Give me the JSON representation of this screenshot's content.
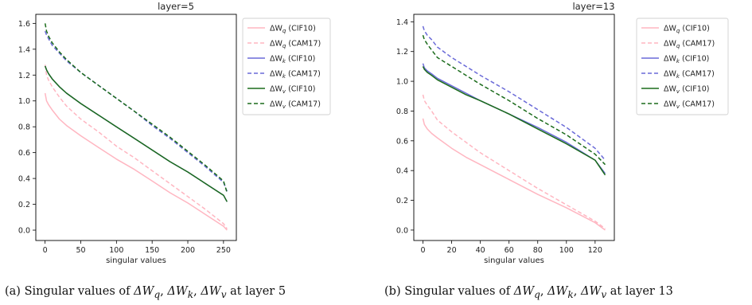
{
  "chart_data": [
    {
      "type": "line",
      "title": "layer=5",
      "xlabel": "singular values",
      "ylabel": "",
      "xlim": [
        -13,
        268
      ],
      "ylim": [
        -0.08,
        1.67
      ],
      "xticks": [
        0,
        50,
        100,
        150,
        200,
        250
      ],
      "yticks": [
        0.0,
        0.2,
        0.4,
        0.6,
        0.8,
        1.0,
        1.2,
        1.4,
        1.6
      ],
      "grid": false,
      "legend_position": "top-right",
      "series": [
        {
          "name": "ΔW_q (CIF10)",
          "legend_main": "ΔW",
          "legend_sub": "q",
          "legend_tag": "(CIF10)",
          "color": "#ffb6c1",
          "dash": "solid",
          "x": [
            0,
            2,
            5,
            10,
            20,
            30,
            50,
            75,
            100,
            125,
            150,
            175,
            200,
            225,
            250,
            255
          ],
          "y": [
            1.06,
            1.0,
            0.97,
            0.93,
            0.86,
            0.81,
            0.73,
            0.64,
            0.55,
            0.47,
            0.38,
            0.29,
            0.21,
            0.12,
            0.03,
            0.0
          ]
        },
        {
          "name": "ΔW_q (CAM17)",
          "legend_main": "ΔW",
          "legend_sub": "q",
          "legend_tag": "(CAM17)",
          "color": "#ffb6c1",
          "dash": "dashed",
          "x": [
            0,
            2,
            5,
            10,
            20,
            30,
            50,
            75,
            100,
            125,
            150,
            175,
            200,
            225,
            250,
            255
          ],
          "y": [
            1.28,
            1.2,
            1.16,
            1.11,
            1.03,
            0.96,
            0.86,
            0.76,
            0.65,
            0.56,
            0.46,
            0.36,
            0.26,
            0.16,
            0.05,
            0.01
          ]
        },
        {
          "name": "ΔW_k (CIF10)",
          "legend_main": "ΔW",
          "legend_sub": "k",
          "legend_tag": "(CIF10)",
          "color": "#6a6ad8",
          "dash": "solid",
          "x": [
            0,
            2,
            5,
            10,
            20,
            30,
            50,
            75,
            100,
            125,
            150,
            175,
            200,
            225,
            250,
            255
          ],
          "y": [
            1.27,
            1.24,
            1.21,
            1.17,
            1.11,
            1.06,
            0.98,
            0.89,
            0.8,
            0.71,
            0.62,
            0.53,
            0.45,
            0.36,
            0.27,
            0.22
          ]
        },
        {
          "name": "ΔW_k (CAM17)",
          "legend_main": "ΔW",
          "legend_sub": "k",
          "legend_tag": "(CAM17)",
          "color": "#6a6ad8",
          "dash": "dashed",
          "x": [
            0,
            2,
            5,
            10,
            20,
            30,
            50,
            75,
            100,
            125,
            150,
            175,
            200,
            225,
            250,
            255
          ],
          "y": [
            1.54,
            1.51,
            1.48,
            1.43,
            1.37,
            1.31,
            1.22,
            1.12,
            1.02,
            0.92,
            0.81,
            0.71,
            0.6,
            0.49,
            0.37,
            0.3
          ]
        },
        {
          "name": "ΔW_v (CIF10)",
          "legend_main": "ΔW",
          "legend_sub": "v",
          "legend_tag": "(CIF10)",
          "color": "#1b6b1b",
          "dash": "solid",
          "x": [
            0,
            2,
            5,
            10,
            20,
            30,
            50,
            75,
            100,
            125,
            150,
            175,
            200,
            225,
            250,
            255
          ],
          "y": [
            1.27,
            1.24,
            1.21,
            1.17,
            1.11,
            1.06,
            0.98,
            0.89,
            0.8,
            0.71,
            0.62,
            0.53,
            0.45,
            0.36,
            0.27,
            0.22
          ]
        },
        {
          "name": "ΔW_v (CAM17)",
          "legend_main": "ΔW",
          "legend_sub": "v",
          "legend_tag": "(CAM17)",
          "color": "#1b6b1b",
          "dash": "dashed",
          "x": [
            0,
            2,
            5,
            10,
            20,
            30,
            50,
            75,
            100,
            125,
            150,
            175,
            200,
            225,
            250,
            255
          ],
          "y": [
            1.6,
            1.54,
            1.5,
            1.45,
            1.38,
            1.32,
            1.22,
            1.12,
            1.02,
            0.92,
            0.82,
            0.72,
            0.61,
            0.5,
            0.38,
            0.29
          ]
        }
      ]
    },
    {
      "type": "line",
      "title": "layer=13",
      "xlabel": "singular values",
      "ylabel": "",
      "xlim": [
        -6.4,
        133.4
      ],
      "ylim": [
        -0.07,
        1.45
      ],
      "xticks": [
        0,
        20,
        40,
        60,
        80,
        100,
        120
      ],
      "yticks": [
        0.0,
        0.2,
        0.4,
        0.6,
        0.8,
        1.0,
        1.2,
        1.4
      ],
      "grid": false,
      "legend_position": "top-right",
      "series": [
        {
          "name": "ΔW_q (CIF10)",
          "legend_main": "ΔW",
          "legend_sub": "q",
          "legend_tag": "(CIF10)",
          "color": "#ffb6c1",
          "dash": "solid",
          "x": [
            0,
            1,
            3,
            6,
            10,
            20,
            30,
            40,
            60,
            80,
            100,
            120,
            127
          ],
          "y": [
            0.75,
            0.71,
            0.68,
            0.65,
            0.62,
            0.55,
            0.49,
            0.44,
            0.34,
            0.24,
            0.15,
            0.05,
            0.0
          ]
        },
        {
          "name": "ΔW_q (CAM17)",
          "legend_main": "ΔW",
          "legend_sub": "q",
          "legend_tag": "(CAM17)",
          "color": "#ffb6c1",
          "dash": "dashed",
          "x": [
            0,
            1,
            3,
            6,
            10,
            20,
            30,
            40,
            60,
            80,
            100,
            120,
            127
          ],
          "y": [
            0.91,
            0.87,
            0.84,
            0.8,
            0.74,
            0.66,
            0.59,
            0.52,
            0.4,
            0.28,
            0.17,
            0.06,
            0.01
          ]
        },
        {
          "name": "ΔW_k (CIF10)",
          "legend_main": "ΔW",
          "legend_sub": "k",
          "legend_tag": "(CIF10)",
          "color": "#6a6ad8",
          "dash": "solid",
          "x": [
            0,
            1,
            3,
            6,
            10,
            20,
            30,
            40,
            60,
            80,
            100,
            120,
            127
          ],
          "y": [
            1.12,
            1.09,
            1.07,
            1.05,
            1.02,
            0.97,
            0.92,
            0.87,
            0.78,
            0.69,
            0.59,
            0.47,
            0.38
          ]
        },
        {
          "name": "ΔW_k (CAM17)",
          "legend_main": "ΔW",
          "legend_sub": "k",
          "legend_tag": "(CAM17)",
          "color": "#6a6ad8",
          "dash": "dashed",
          "x": [
            0,
            1,
            3,
            6,
            10,
            20,
            30,
            40,
            60,
            80,
            100,
            120,
            127
          ],
          "y": [
            1.37,
            1.34,
            1.31,
            1.28,
            1.23,
            1.16,
            1.1,
            1.04,
            0.93,
            0.81,
            0.69,
            0.55,
            0.47
          ]
        },
        {
          "name": "ΔW_v (CIF10)",
          "legend_main": "ΔW",
          "legend_sub": "v",
          "legend_tag": "(CIF10)",
          "color": "#1b6b1b",
          "dash": "solid",
          "x": [
            0,
            1,
            3,
            6,
            10,
            20,
            30,
            40,
            60,
            80,
            100,
            120,
            127
          ],
          "y": [
            1.1,
            1.08,
            1.06,
            1.04,
            1.01,
            0.96,
            0.91,
            0.87,
            0.78,
            0.68,
            0.58,
            0.47,
            0.37
          ]
        },
        {
          "name": "ΔW_v (CAM17)",
          "legend_main": "ΔW",
          "legend_sub": "v",
          "legend_tag": "(CAM17)",
          "color": "#1b6b1b",
          "dash": "dashed",
          "x": [
            0,
            1,
            3,
            6,
            10,
            20,
            30,
            40,
            60,
            80,
            100,
            120,
            127
          ],
          "y": [
            1.31,
            1.28,
            1.25,
            1.21,
            1.16,
            1.1,
            1.04,
            0.98,
            0.87,
            0.75,
            0.64,
            0.51,
            0.44
          ]
        }
      ]
    }
  ],
  "captions": [
    {
      "prefix": "(a) Singular values of",
      "terms": [
        {
          "main": "ΔW",
          "sub": "q"
        },
        {
          "main": "ΔW",
          "sub": "k"
        },
        {
          "main": "ΔW",
          "sub": "v"
        }
      ],
      "suffix": "at layer 5"
    },
    {
      "prefix": "(b) Singular values of",
      "terms": [
        {
          "main": "ΔW",
          "sub": "q"
        },
        {
          "main": "ΔW",
          "sub": "k"
        },
        {
          "main": "ΔW",
          "sub": "v"
        }
      ],
      "suffix": "at layer 13"
    }
  ]
}
